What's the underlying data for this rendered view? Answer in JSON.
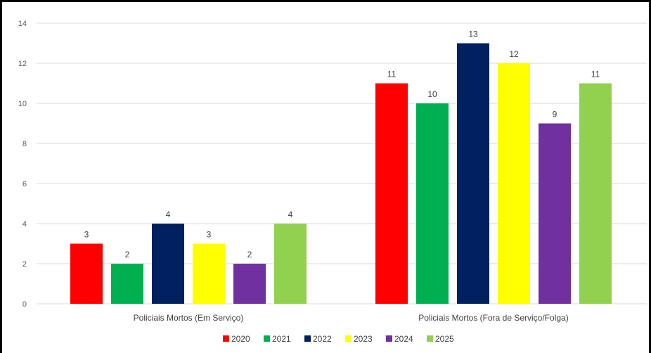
{
  "chart_data": {
    "type": "bar",
    "categories": [
      "Policiais Mortos (Em Serviço)",
      "Policiais Mortos (Fora de Serviço/Folga)"
    ],
    "series": [
      {
        "name": "2020",
        "color": "#ff0000",
        "values": [
          3,
          11
        ]
      },
      {
        "name": "2021",
        "color": "#00b050",
        "values": [
          2,
          10
        ]
      },
      {
        "name": "2022",
        "color": "#002060",
        "values": [
          4,
          13
        ]
      },
      {
        "name": "2023",
        "color": "#ffff00",
        "values": [
          3,
          12
        ]
      },
      {
        "name": "2024",
        "color": "#7030a0",
        "values": [
          2,
          9
        ]
      },
      {
        "name": "2025",
        "color": "#92d050",
        "values": [
          4,
          11
        ]
      }
    ],
    "yticks": [
      0,
      2,
      4,
      6,
      8,
      10,
      12,
      14
    ],
    "ylim": [
      0,
      14
    ],
    "grid": true,
    "data_labels": true,
    "legend_position": "bottom"
  }
}
